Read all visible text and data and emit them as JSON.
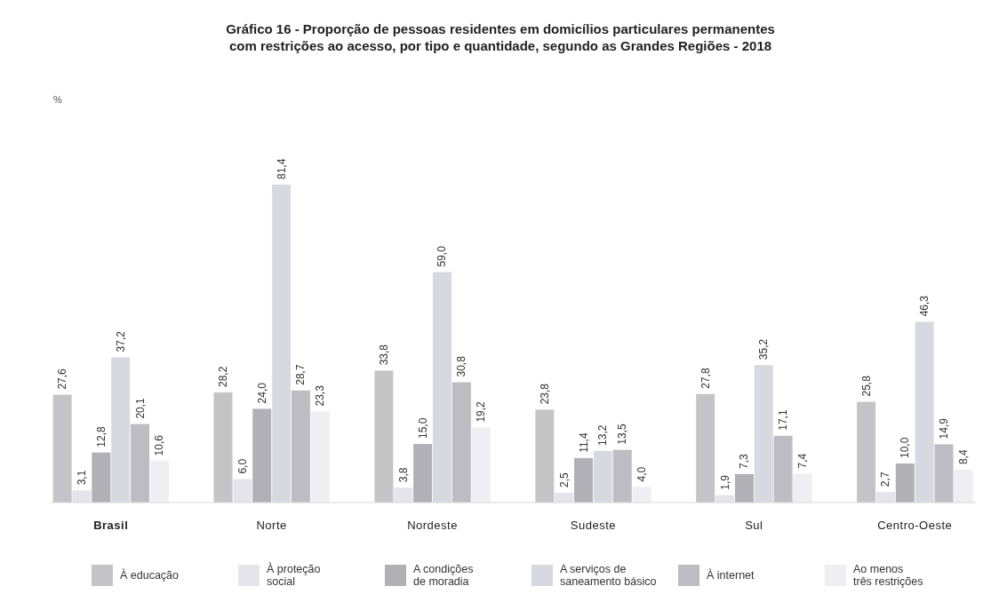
{
  "chart_data": {
    "type": "bar",
    "title": "Gráfico 16 - Proporção de pessoas residentes em domicílios particulares permanentes\ncom restrições ao acesso, por tipo e quantidade, segundo as Grandes Regiões - 2018",
    "annotations": [
      "%"
    ],
    "categories": [
      "Brasil",
      "Norte",
      "Nordeste",
      "Sudeste",
      "Sul",
      "Centro-Oeste"
    ],
    "series": [
      {
        "name": "À educação",
        "color": "#c4c4c8",
        "values": [
          27.6,
          28.2,
          33.8,
          23.8,
          27.8,
          25.8
        ],
        "value_labels": [
          "27,6",
          "28,2",
          "33,8",
          "23,8",
          "27,8",
          "25,8"
        ]
      },
      {
        "name": "À proteção\nsocial",
        "color": "#e4e4ea",
        "values": [
          3.1,
          6.0,
          3.8,
          2.5,
          1.9,
          2.7
        ],
        "value_labels": [
          "3,1",
          "6,0",
          "3,8",
          "2,5",
          "1,9",
          "2,7"
        ]
      },
      {
        "name": "A condições\nde moradia",
        "color": "#b0b0b6",
        "values": [
          12.8,
          24.0,
          15.0,
          11.4,
          7.3,
          10.0
        ],
        "value_labels": [
          "12,8",
          "24,0",
          "15,0",
          "11,4",
          "7,3",
          "10,0"
        ]
      },
      {
        "name": "A serviços de\nsaneamento básico",
        "color": "#d8d8e0",
        "values": [
          37.2,
          81.4,
          59.0,
          13.2,
          35.2,
          46.3
        ],
        "value_labels": [
          "37,2",
          "81,4",
          "59,0",
          "13,2",
          "35,2",
          "46,3"
        ]
      },
      {
        "name": "À internet",
        "color": "#bcbcc2",
        "values": [
          20.1,
          28.7,
          30.8,
          13.5,
          17.1,
          14.9
        ],
        "value_labels": [
          "20,1",
          "28,7",
          "30,8",
          "13,5",
          "17,1",
          "14,9"
        ]
      },
      {
        "name": "Ao menos\ntrês restrições",
        "color": "#eeeef3",
        "values": [
          10.6,
          23.3,
          19.2,
          4.0,
          7.4,
          8.4
        ],
        "value_labels": [
          "10,6",
          "23,3",
          "19,2",
          "4,0",
          "7,4",
          "8,4"
        ]
      }
    ],
    "legend": "bottom"
  }
}
